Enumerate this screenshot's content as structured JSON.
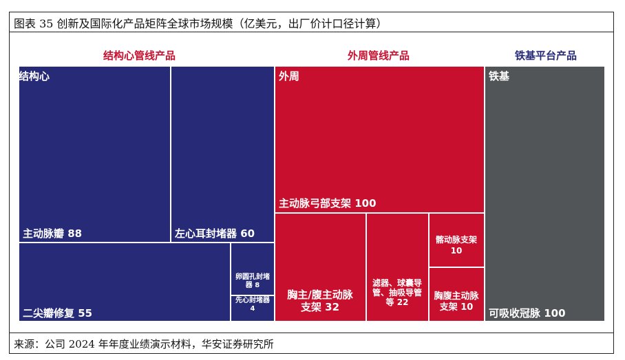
{
  "title": "图表 35 创新及国际化产品矩阵全球市场规模（亿美元，出厂价计口径计算）",
  "source": "来源：公司 2024 年年度业绩演示材料，华安证券研究所",
  "colors": {
    "structural": "#262a77",
    "peripheral": "#c8102e",
    "iron": "#525557",
    "border": "#ffffff"
  },
  "chart_data": {
    "type": "treemap",
    "unit": "亿美元",
    "groups": [
      {
        "key": "structural",
        "name": "结构心管线产品",
        "header_color": "#c8102e",
        "inner_label": "结构心",
        "items": [
          {
            "label": "主动脉瓣",
            "value": 88,
            "text": "主动脉瓣  88"
          },
          {
            "label": "左心耳封堵器",
            "value": 60,
            "text": "左心耳封堵器  60"
          },
          {
            "label": "二尖瓣修复",
            "value": 55,
            "text": "二尖瓣修复  55"
          },
          {
            "label": "卵圆孔封堵器",
            "value": 8,
            "text_lines": [
              "卵圆孔封堵",
              "器 8"
            ]
          },
          {
            "label": "先心封堵器",
            "value": 4,
            "text_lines": [
              "先心封堵器",
              "4"
            ]
          }
        ]
      },
      {
        "key": "peripheral",
        "name": "外周管线产品",
        "header_color": "#c8102e",
        "inner_label": "外周",
        "items": [
          {
            "label": "主动脉弓部支架",
            "value": 100,
            "text": "主动脉弓部支架  100"
          },
          {
            "label": "胸主/腹主动脉支架",
            "value": 32,
            "text_lines": [
              "胸主/腹主动脉",
              "支架  32"
            ]
          },
          {
            "label": "滤器、球囊导管、抽吸导管等",
            "value": 22,
            "text_lines": [
              "滤器、球囊导",
              "管、抽吸导管",
              "等 22"
            ]
          },
          {
            "label": "髂动脉支架",
            "value": 10,
            "text_lines": [
              "髂动脉支架",
              "10"
            ]
          },
          {
            "label": "胸腹主动脉支架",
            "value": 10,
            "text_lines": [
              "胸腹主动脉",
              "支架  10"
            ]
          }
        ]
      },
      {
        "key": "iron",
        "name": "铁基平台产品",
        "header_color": "#262a77",
        "inner_label": "铁基",
        "items": [
          {
            "label": "可吸收冠脉",
            "value": 100,
            "text": "可吸收冠脉  100"
          }
        ]
      }
    ]
  }
}
